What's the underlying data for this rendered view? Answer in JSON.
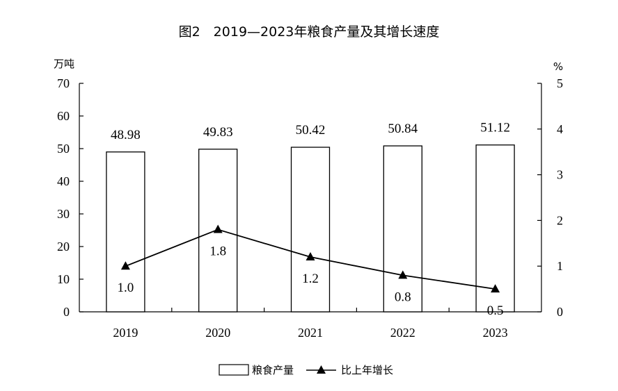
{
  "chart_data": {
    "type": "bar+line",
    "title": "图2　2019—2023年粮食产量及其增长速度",
    "categories": [
      "2019",
      "2020",
      "2021",
      "2022",
      "2023"
    ],
    "y_left": {
      "unit": "万吨",
      "range": [
        0,
        70
      ],
      "ticks": [
        "0",
        "10",
        "20",
        "30",
        "40",
        "50",
        "60",
        "70"
      ]
    },
    "y_right": {
      "unit": "%",
      "range": [
        0,
        5
      ],
      "ticks": [
        "0",
        "1",
        "2",
        "3",
        "4",
        "5"
      ]
    },
    "series": [
      {
        "name": "粮食产量",
        "type": "bar",
        "axis": "left",
        "values": [
          48.98,
          49.83,
          50.42,
          50.84,
          51.12
        ],
        "labels": [
          "48.98",
          "49.83",
          "50.42",
          "50.84",
          "51.12"
        ]
      },
      {
        "name": "比上年增长",
        "type": "line",
        "axis": "right",
        "marker": "triangle",
        "values": [
          1.0,
          1.8,
          1.2,
          0.8,
          0.5
        ],
        "labels": [
          "1.0",
          "1.8",
          "1.2",
          "0.8",
          "0.5"
        ]
      }
    ],
    "legend_position": "bottom-center",
    "grid": false,
    "colors": {
      "bar_fill": "#ffffff",
      "bar_stroke": "#000000",
      "line": "#000000"
    }
  }
}
